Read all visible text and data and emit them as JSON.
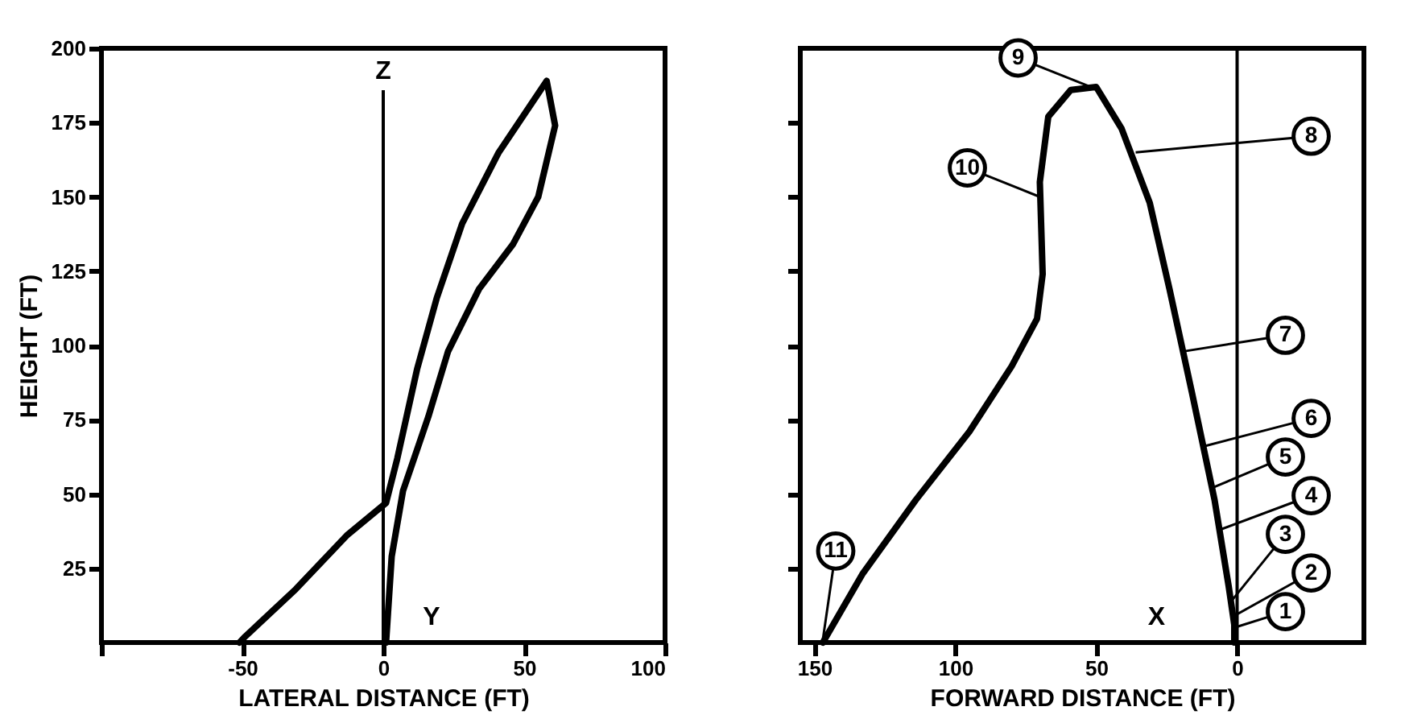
{
  "chart_data": [
    {
      "type": "line",
      "xlabel": "LATERAL DISTANCE (FT)",
      "ylabel": "HEIGHT (FT)",
      "xlim": [
        -100,
        100
      ],
      "xticks": [
        {
          "value": -100,
          "label": null
        },
        -50,
        0,
        50,
        100
      ],
      "ylim": [
        0,
        200
      ],
      "yticks": [
        25,
        50,
        75,
        100,
        125,
        150,
        175,
        200
      ],
      "grid": false,
      "marker": "none",
      "series": [
        {
          "color": "#000000",
          "x": [
            -51,
            -49,
            -31,
            -13,
            1,
            5,
            12,
            19,
            28,
            41,
            58,
            61,
            55,
            46,
            34,
            23,
            16,
            7,
            3,
            1
          ],
          "values": [
            0,
            2,
            18,
            36,
            47,
            62,
            92,
            116,
            141,
            165,
            189,
            174,
            150,
            134,
            119,
            98,
            76,
            51,
            29,
            0
          ]
        }
      ],
      "ref_lines": [
        {
          "axis": "x",
          "value": 0,
          "label": "Z",
          "color": "#000000"
        }
      ],
      "annotations": [
        "Y"
      ]
    },
    {
      "type": "line",
      "xlabel": "FORWARD DISTANCE (FT)",
      "xlim": [
        155,
        -45
      ],
      "xticks": [
        150,
        100,
        50,
        0
      ],
      "ylim": [
        0,
        200
      ],
      "yticks": [
        {
          "value": 25,
          "label": null
        },
        {
          "value": 50,
          "label": null
        },
        {
          "value": 75,
          "label": null
        },
        {
          "value": 100,
          "label": null
        },
        {
          "value": 125,
          "label": null
        },
        {
          "value": 150,
          "label": null
        },
        {
          "value": 175,
          "label": null
        }
      ],
      "tick_labels": "x",
      "grid": false,
      "marker": "none",
      "series": [
        {
          "color": "#000000",
          "x": [
            1,
            1,
            3,
            8,
            16,
            24,
            31,
            41,
            50,
            59,
            67,
            70,
            69,
            71,
            80,
            95,
            114,
            133,
            147
          ],
          "values": [
            0,
            6,
            19,
            48,
            84,
            119,
            148,
            173,
            187,
            186,
            177,
            155,
            124,
            109,
            93,
            71,
            48,
            23,
            0
          ]
        }
      ],
      "ref_lines": [
        {
          "axis": "x",
          "value": 0,
          "color": "#000000"
        }
      ],
      "annotations": [
        {
          "text": "1",
          "x": 1,
          "y": 5
        },
        {
          "text": "2",
          "x": 1,
          "y": 9
        },
        {
          "text": "3",
          "x": 2,
          "y": 14
        },
        {
          "text": "4",
          "x": 6,
          "y": 38
        },
        {
          "text": "5",
          "x": 9,
          "y": 52
        },
        {
          "text": "6",
          "x": 12,
          "y": 66
        },
        {
          "text": "7",
          "x": 19,
          "y": 98
        },
        {
          "text": "8",
          "x": 36,
          "y": 165
        },
        {
          "text": "9",
          "x": 52,
          "y": 187
        },
        {
          "text": "10",
          "x": 70,
          "y": 150
        },
        {
          "text": "11",
          "x": 147,
          "y": 1
        },
        "X"
      ]
    }
  ]
}
